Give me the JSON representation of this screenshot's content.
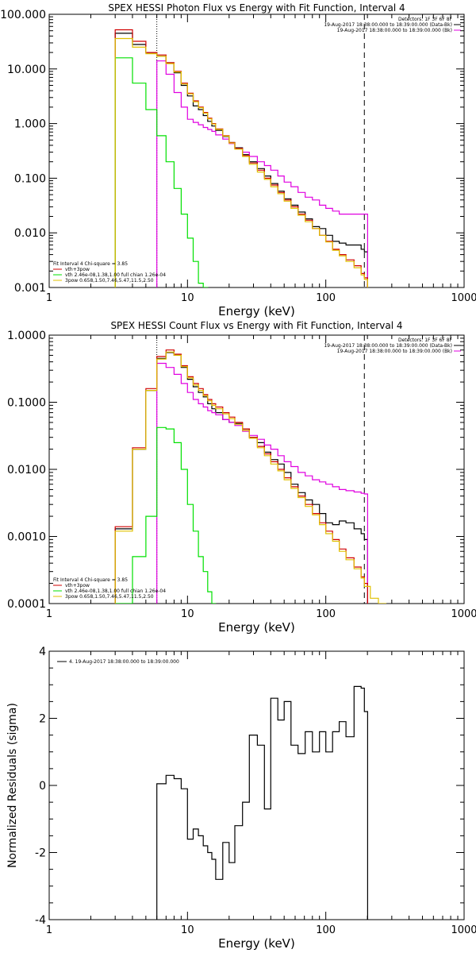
{
  "colors": {
    "black": "#000000",
    "red": "#d00000",
    "magenta": "#e000e0",
    "green": "#00e000",
    "yellow": "#e0c000",
    "purple": "#8040c0"
  },
  "chart_data": [
    {
      "type": "line",
      "title": "SPEX HESSI Photon Flux vs Energy with Fit Function, Interval 4",
      "xlabel": "Energy (keV)",
      "ylabel": "",
      "xscale": "log",
      "yscale": "log",
      "xlim": [
        1,
        1000
      ],
      "ylim": [
        0.001,
        100
      ],
      "yticks": [
        0.001,
        0.01,
        0.1,
        1,
        10,
        100
      ],
      "ytick_labels": [
        "0.001",
        "0.010",
        "0.100",
        "1.000",
        "10.000",
        "100.000"
      ],
      "xticks": [
        1,
        10,
        100,
        1000
      ],
      "xtick_labels": [
        "1",
        "10",
        "100",
        "1000"
      ],
      "info_lines": [
        "Detectors: 1F 3F 6F 8F",
        "19-Aug-2017 18:38:00.000 to 18:39:00.000 (Data-Bk)",
        "19-Aug-2017 18:38:00.000 to 18:39:00.000 (Bk)"
      ],
      "legend_lines": [
        "Fit Interval 4   Chi-square = 3.85",
        "vth+3pow",
        "vth 2.46e-08,1.38,1.00  full chian 1.26e-04",
        "3pow 0.658,1.50,7.46,5.47,11.5,2.50"
      ],
      "vlines": [
        6,
        190
      ],
      "series": [
        {
          "name": "Data-Bk",
          "color": "black",
          "x": [
            3,
            4,
            5,
            6,
            7,
            8,
            9,
            10,
            11,
            12,
            13,
            14,
            15,
            16,
            18,
            20,
            22,
            25,
            28,
            32,
            36,
            40,
            45,
            50,
            56,
            63,
            71,
            80,
            90,
            100,
            112,
            125,
            140,
            160,
            180,
            190
          ],
          "y": [
            45,
            28,
            20,
            17,
            13,
            8.5,
            5.0,
            3.2,
            2.1,
            1.8,
            1.4,
            1.1,
            0.9,
            0.75,
            0.58,
            0.45,
            0.36,
            0.27,
            0.2,
            0.15,
            0.11,
            0.08,
            0.058,
            0.042,
            0.032,
            0.024,
            0.018,
            0.013,
            0.012,
            0.009,
            0.007,
            0.0065,
            0.006,
            0.006,
            0.005,
            0.0045
          ]
        },
        {
          "name": "Bk",
          "color": "magenta",
          "x": [
            6,
            7,
            8,
            9,
            10,
            11,
            12,
            13,
            14,
            15,
            16,
            18,
            20,
            22,
            25,
            28,
            32,
            36,
            40,
            45,
            50,
            56,
            63,
            71,
            80,
            90,
            100,
            112,
            125,
            140,
            160,
            180,
            190
          ],
          "y": [
            14,
            8,
            3.7,
            2.0,
            1.2,
            1.05,
            0.95,
            0.85,
            0.78,
            0.72,
            0.62,
            0.52,
            0.43,
            0.35,
            0.3,
            0.25,
            0.2,
            0.17,
            0.14,
            0.11,
            0.085,
            0.07,
            0.055,
            0.045,
            0.04,
            0.032,
            0.028,
            0.025,
            0.022,
            0.022,
            0.022,
            0.022,
            0.022
          ]
        },
        {
          "name": "vth+3pow",
          "color": "red",
          "x": [
            3,
            4,
            5,
            6,
            7,
            8,
            9,
            10,
            11,
            12,
            13,
            14,
            15,
            16,
            18,
            20,
            22,
            25,
            28,
            32,
            36,
            40,
            45,
            50,
            56,
            63,
            71,
            80,
            90,
            100,
            112,
            125,
            140,
            160,
            180,
            190
          ],
          "y": [
            52,
            32,
            20,
            18,
            13,
            9,
            5.5,
            3.6,
            2.6,
            2.0,
            1.6,
            1.25,
            1.0,
            0.8,
            0.6,
            0.45,
            0.35,
            0.26,
            0.19,
            0.14,
            0.1,
            0.075,
            0.055,
            0.04,
            0.03,
            0.022,
            0.017,
            0.012,
            0.009,
            0.007,
            0.005,
            0.004,
            0.0032,
            0.0025,
            0.0018,
            0.0015
          ]
        },
        {
          "name": "vth",
          "color": "green",
          "x": [
            3,
            4,
            5,
            6,
            7,
            8,
            9,
            10,
            11,
            12,
            13,
            14
          ],
          "y": [
            16,
            5.5,
            1.8,
            0.6,
            0.2,
            0.065,
            0.022,
            0.008,
            0.003,
            0.0012,
            0.001,
            0.0005
          ]
        },
        {
          "name": "3pow",
          "color": "yellow",
          "x": [
            3,
            4,
            5,
            6,
            7,
            8,
            9,
            10,
            11,
            12,
            13,
            14,
            15,
            16,
            18,
            20,
            22,
            25,
            28,
            32,
            36,
            40,
            45,
            50,
            56,
            63,
            71,
            80,
            90,
            100,
            112,
            125,
            140,
            160,
            180,
            190
          ],
          "y": [
            36,
            25,
            19,
            17,
            12.5,
            8.8,
            5.3,
            3.5,
            2.5,
            1.95,
            1.55,
            1.22,
            0.98,
            0.78,
            0.59,
            0.44,
            0.34,
            0.25,
            0.18,
            0.13,
            0.095,
            0.07,
            0.052,
            0.038,
            0.028,
            0.021,
            0.016,
            0.012,
            0.009,
            0.0068,
            0.0048,
            0.0038,
            0.003,
            0.0023,
            0.0017,
            0.0014
          ]
        }
      ]
    },
    {
      "type": "line",
      "title": "SPEX HESSI Count Flux vs Energy with Fit Function, Interval 4",
      "xlabel": "Energy (keV)",
      "ylabel": "",
      "xscale": "log",
      "yscale": "log",
      "xlim": [
        1,
        1000
      ],
      "ylim": [
        0.0001,
        1
      ],
      "yticks": [
        0.0001,
        0.001,
        0.01,
        0.1,
        1
      ],
      "ytick_labels": [
        "0.0001",
        "0.0010",
        "0.0100",
        "0.1000",
        "1.0000"
      ],
      "xticks": [
        1,
        10,
        100,
        1000
      ],
      "xtick_labels": [
        "1",
        "10",
        "100",
        "1000"
      ],
      "info_lines": [
        "Detectors: 1F 3F 6F 8F",
        "19-Aug-2017 18:38:00.000 to 18:39:00.000 (Data-Bk)",
        "19-Aug-2017 18:38:00.000 to 18:39:00.000 (Bk)"
      ],
      "legend_lines": [
        "Fit Interval 4   Chi-square = 3.85",
        "vth+3pow",
        "vth 2.46e-08,1.38,1.00  full chian 1.26e-04",
        "3pow 0.658,1.50,7.46,5.47,11.5,2.50"
      ],
      "vlines": [
        6,
        190
      ],
      "series": [
        {
          "name": "Data-Bk",
          "color": "black",
          "x": [
            3,
            4,
            5,
            6,
            7,
            8,
            9,
            10,
            11,
            12,
            13,
            14,
            15,
            16,
            18,
            20,
            22,
            25,
            28,
            32,
            36,
            40,
            45,
            50,
            56,
            63,
            71,
            80,
            90,
            100,
            112,
            125,
            140,
            160,
            180,
            190
          ],
          "y": [
            0.0013,
            0.02,
            0.15,
            0.45,
            0.55,
            0.5,
            0.33,
            0.22,
            0.17,
            0.14,
            0.12,
            0.095,
            0.08,
            0.07,
            0.055,
            0.05,
            0.048,
            0.04,
            0.03,
            0.025,
            0.018,
            0.014,
            0.012,
            0.009,
            0.006,
            0.0045,
            0.0035,
            0.003,
            0.0022,
            0.0016,
            0.0015,
            0.0017,
            0.0016,
            0.0013,
            0.0011,
            0.0009
          ]
        },
        {
          "name": "Bk",
          "color": "magenta",
          "x": [
            6,
            7,
            8,
            9,
            10,
            11,
            12,
            13,
            14,
            15,
            16,
            18,
            20,
            22,
            25,
            28,
            32,
            36,
            40,
            45,
            50,
            56,
            63,
            71,
            80,
            90,
            100,
            112,
            125,
            140,
            160,
            180,
            190
          ],
          "y": [
            0.38,
            0.33,
            0.26,
            0.19,
            0.14,
            0.11,
            0.095,
            0.085,
            0.075,
            0.07,
            0.065,
            0.055,
            0.05,
            0.045,
            0.037,
            0.032,
            0.028,
            0.023,
            0.02,
            0.016,
            0.013,
            0.011,
            0.009,
            0.008,
            0.007,
            0.0065,
            0.006,
            0.0055,
            0.005,
            0.0048,
            0.0046,
            0.0044,
            0.0043
          ]
        },
        {
          "name": "vth+3pow",
          "color": "red",
          "x": [
            3,
            4,
            5,
            6,
            7,
            8,
            9,
            10,
            11,
            12,
            13,
            14,
            15,
            16,
            18,
            20,
            22,
            25,
            28,
            32,
            36,
            40,
            45,
            50,
            56,
            63,
            71,
            80,
            90,
            100,
            112,
            125,
            140,
            160,
            180,
            190
          ],
          "y": [
            0.0014,
            0.021,
            0.16,
            0.48,
            0.6,
            0.52,
            0.35,
            0.24,
            0.19,
            0.16,
            0.13,
            0.11,
            0.095,
            0.085,
            0.07,
            0.06,
            0.05,
            0.04,
            0.03,
            0.022,
            0.017,
            0.013,
            0.01,
            0.0075,
            0.0055,
            0.004,
            0.003,
            0.0022,
            0.0016,
            0.0012,
            0.0009,
            0.00065,
            0.00048,
            0.00035,
            0.00025,
            0.0002
          ]
        },
        {
          "name": "vth",
          "color": "green",
          "x": [
            3,
            4,
            5,
            6,
            7,
            8,
            9,
            10,
            11,
            12,
            13,
            14,
            15
          ],
          "y": [
            0.0001,
            0.0005,
            0.002,
            0.042,
            0.04,
            0.025,
            0.01,
            0.003,
            0.0012,
            0.0005,
            0.0003,
            0.00015,
            0.0001
          ]
        },
        {
          "name": "3pow",
          "color": "yellow",
          "x": [
            3,
            4,
            5,
            6,
            7,
            8,
            9,
            10,
            11,
            12,
            13,
            14,
            15,
            16,
            18,
            20,
            22,
            25,
            28,
            32,
            36,
            40,
            45,
            50,
            56,
            63,
            71,
            80,
            90,
            100,
            112,
            125,
            140,
            160,
            180,
            190,
            210,
            240
          ],
          "y": [
            0.0012,
            0.02,
            0.15,
            0.44,
            0.56,
            0.5,
            0.34,
            0.23,
            0.18,
            0.15,
            0.125,
            0.105,
            0.09,
            0.08,
            0.067,
            0.057,
            0.047,
            0.038,
            0.029,
            0.021,
            0.016,
            0.012,
            0.0095,
            0.007,
            0.0052,
            0.0038,
            0.0028,
            0.0021,
            0.0015,
            0.0011,
            0.00085,
            0.0006,
            0.00045,
            0.00033,
            0.00024,
            0.00018,
            0.00012,
            0.0001
          ]
        }
      ]
    },
    {
      "type": "line",
      "title": "",
      "xlabel": "Energy (keV)",
      "ylabel": "Normalized Residuals (sigma)",
      "xscale": "log",
      "yscale": "linear",
      "xlim": [
        1,
        1000
      ],
      "ylim": [
        -4,
        4
      ],
      "yticks": [
        -4,
        -2,
        0,
        2,
        4
      ],
      "ytick_labels": [
        "-4",
        "-2",
        "0",
        "2",
        "4"
      ],
      "xticks": [
        1,
        10,
        100,
        1000
      ],
      "xtick_labels": [
        "1",
        "10",
        "100",
        "1000"
      ],
      "legend_lines": [
        "4. 19-Aug-2017 18:38:00.000 to 18:39:00.000"
      ],
      "series": [
        {
          "name": "4. 19-Aug-2017 18:38:00.000 to 18:39:00.000",
          "color": "black",
          "x": [
            6,
            7,
            8,
            9,
            10,
            11,
            12,
            13,
            14,
            15,
            16,
            18,
            20,
            22,
            25,
            28,
            32,
            36,
            40,
            45,
            50,
            56,
            63,
            71,
            80,
            90,
            100,
            112,
            125,
            140,
            160,
            180,
            190
          ],
          "y": [
            0.05,
            0.3,
            0.2,
            -0.1,
            -1.6,
            -1.3,
            -1.5,
            -1.8,
            -2.0,
            -2.2,
            -2.8,
            -1.7,
            -2.3,
            -1.2,
            -0.5,
            1.5,
            1.2,
            -0.7,
            2.6,
            1.95,
            2.5,
            1.2,
            0.95,
            1.6,
            1.0,
            1.6,
            1.0,
            1.6,
            1.9,
            1.45,
            2.95,
            2.9,
            2.2
          ]
        }
      ]
    }
  ]
}
